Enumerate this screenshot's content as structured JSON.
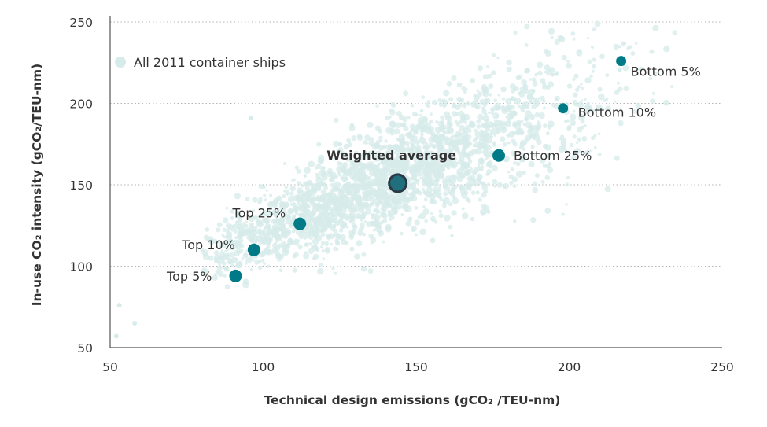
{
  "chart_data": {
    "type": "scatter",
    "xlabel": "Technical design emissions (gCO₂ /TEU-nm)",
    "ylabel": "In-use CO₂ intensity (gCO₂/TEU-nm)",
    "xlim": [
      50,
      250
    ],
    "ylim": [
      50,
      250
    ],
    "x_ticks": [
      "50",
      "100",
      "150",
      "200",
      "250"
    ],
    "y_ticks": [
      "50",
      "100",
      "150",
      "200",
      "250"
    ],
    "grid": "horizontal dotted",
    "legend": {
      "label": "All 2011 container ships",
      "position": "top-left"
    },
    "background_series": {
      "name": "All 2011 container ships",
      "color": "#d6ebea",
      "note_points": [
        [
          52,
          57
        ],
        [
          53,
          76
        ],
        [
          58,
          65
        ],
        [
          96,
          191
        ]
      ]
    },
    "highlighted_points": [
      {
        "label": "Top 5%",
        "x": 91,
        "y": 94,
        "color": "#007a87"
      },
      {
        "label": "Top 10%",
        "x": 97,
        "y": 110,
        "color": "#007a87"
      },
      {
        "label": "Top 25%",
        "x": 112,
        "y": 126,
        "color": "#007a87"
      },
      {
        "label": "Weighted average",
        "x": 144,
        "y": 151,
        "color": "#1f6f7c",
        "outline": "#2b3a46"
      },
      {
        "label": "Bottom 25%",
        "x": 177,
        "y": 168,
        "color": "#007a87"
      },
      {
        "label": "Bottom 10%",
        "x": 198,
        "y": 197,
        "color": "#007a87"
      },
      {
        "label": "Bottom 5%",
        "x": 217,
        "y": 226,
        "color": "#007a87"
      }
    ]
  }
}
